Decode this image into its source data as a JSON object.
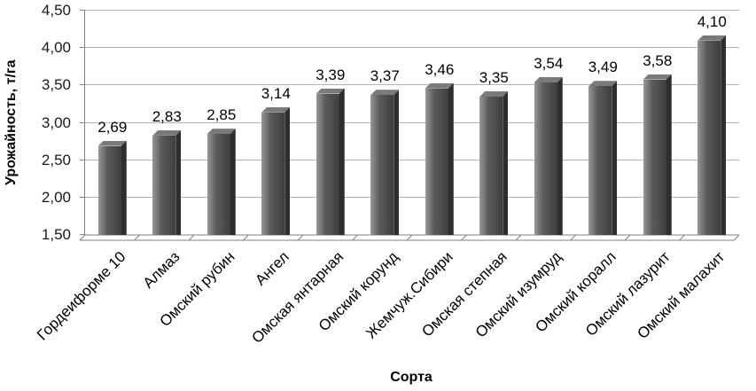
{
  "chart_data": {
    "type": "bar",
    "title": "",
    "xlabel": "Сорта",
    "ylabel": "Урожайность, т/га",
    "ylim": [
      1.5,
      4.5
    ],
    "ytick_step": 0.5,
    "ytick_labels": [
      "1,50",
      "2,00",
      "2,50",
      "3,00",
      "3,50",
      "4,00",
      "4,50"
    ],
    "grid": true,
    "legend": "none",
    "categories": [
      "Гордеиформе 10",
      "Алмаз",
      "Омский рубин",
      "Ангел",
      "Омская янтарная",
      "Омский корунд",
      "Жемчуж.Сибири",
      "Омская степная",
      "Омский изумруд",
      "Омский коралл",
      "Омский лазурит",
      "Омский малахит"
    ],
    "values": [
      2.69,
      2.83,
      2.85,
      3.14,
      3.39,
      3.37,
      3.46,
      3.35,
      3.54,
      3.49,
      3.58,
      4.1
    ],
    "value_labels": [
      "2,69",
      "2,83",
      "2,85",
      "3,14",
      "3,39",
      "3,37",
      "3,46",
      "3,35",
      "3,54",
      "3,49",
      "3,58",
      "4,10"
    ]
  },
  "colors": {
    "gridline": "#b3b3b3",
    "axis": "#808080",
    "bar_dark": "#4c4c4c",
    "bar_side": "#2e2e2e",
    "bar_top": "#7a7a7a",
    "text": "#000000"
  }
}
